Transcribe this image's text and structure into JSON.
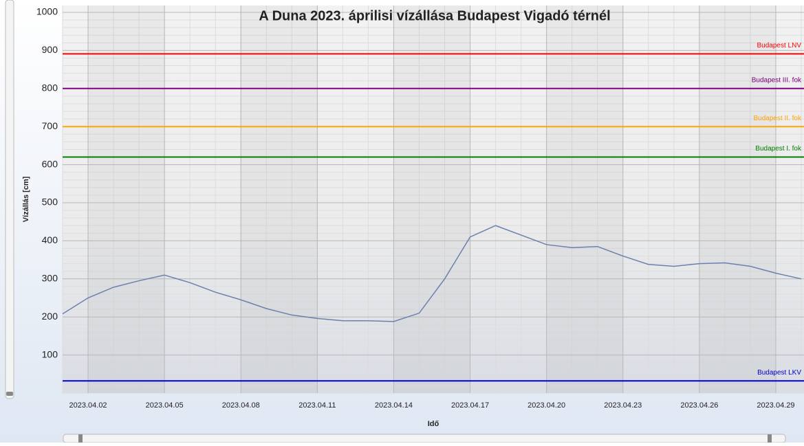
{
  "chart_data": {
    "type": "line",
    "title": "A Duna 2023. áprilisi vízállása Budapest Vigadó térnél",
    "x_label": "Idő",
    "y_label": "Vízállás [cm]",
    "x": [
      "2023.04.01",
      "2023.04.02",
      "2023.04.03",
      "2023.04.04",
      "2023.04.05",
      "2023.04.06",
      "2023.04.07",
      "2023.04.08",
      "2023.04.09",
      "2023.04.10",
      "2023.04.11",
      "2023.04.12",
      "2023.04.13",
      "2023.04.14",
      "2023.04.15",
      "2023.04.16",
      "2023.04.17",
      "2023.04.18",
      "2023.04.19",
      "2023.04.20",
      "2023.04.21",
      "2023.04.22",
      "2023.04.23",
      "2023.04.24",
      "2023.04.25",
      "2023.04.26",
      "2023.04.27",
      "2023.04.28",
      "2023.04.29",
      "2023.04.30"
    ],
    "series": [
      {
        "color": "#6b80ad",
        "values": [
          208,
          250,
          278,
          295,
          310,
          290,
          265,
          245,
          222,
          205,
          196,
          190,
          190,
          188,
          210,
          300,
          410,
          440,
          415,
          390,
          382,
          385,
          360,
          338,
          333,
          340,
          342,
          333,
          315,
          300
        ]
      }
    ],
    "reference_lines": [
      {
        "name": "Budapest LNV",
        "value": 891,
        "color": "#ff0000"
      },
      {
        "name": "Budapest III. fok",
        "value": 800,
        "color": "#800080"
      },
      {
        "name": "Budapest II. fok",
        "value": 700,
        "color": "#ffa500"
      },
      {
        "name": "Budapest I. fok",
        "value": 620,
        "color": "#008000"
      },
      {
        "name": "Budapest LKV",
        "value": 32,
        "color": "#0000cd"
      }
    ],
    "xlim": [
      "2023.04.01",
      "2023.04.30"
    ],
    "xticks": [
      "2023.04.02",
      "2023.04.05",
      "2023.04.08",
      "2023.04.11",
      "2023.04.14",
      "2023.04.17",
      "2023.04.20",
      "2023.04.23",
      "2023.04.26",
      "2023.04.29"
    ],
    "ylim": [
      0,
      1000
    ],
    "yticks": [
      100,
      200,
      300,
      400,
      500,
      600,
      700,
      800,
      900,
      1000
    ],
    "grid": true
  }
}
